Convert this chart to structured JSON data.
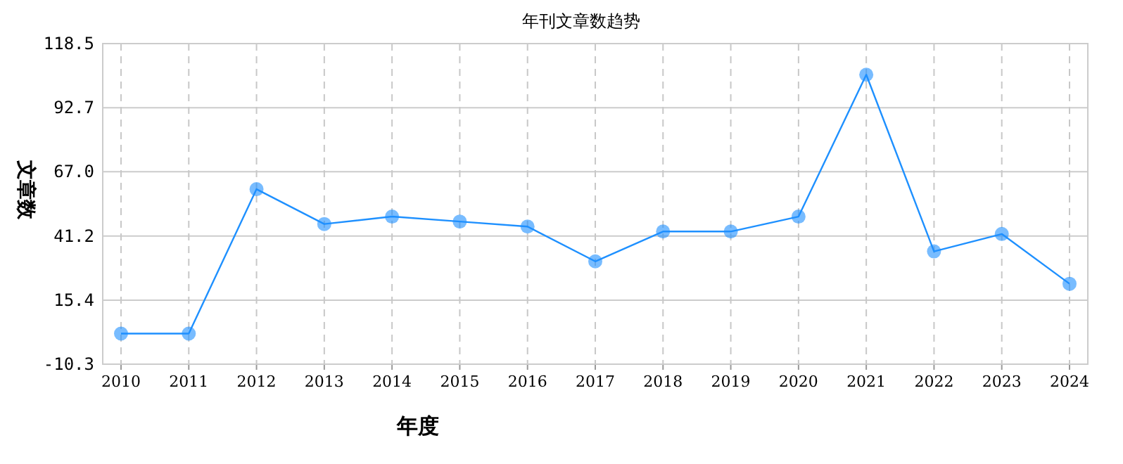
{
  "chart_data": {
    "type": "line",
    "title": "年刊文章数趋势",
    "xlabel": "年度",
    "ylabel": "文章数",
    "categories": [
      "2010",
      "2011",
      "2012",
      "2013",
      "2014",
      "2015",
      "2016",
      "2017",
      "2018",
      "2019",
      "2020",
      "2021",
      "2022",
      "2023",
      "2024"
    ],
    "series": [
      {
        "color": "#1e90ff",
        "values": [
          2,
          2,
          60,
          46,
          49,
          47,
          45,
          31,
          43,
          43,
          49,
          106,
          35,
          42,
          22
        ]
      }
    ],
    "ylim": [
      -10.3,
      118.5
    ],
    "yticks": [
      -10.3,
      15.4,
      41.2,
      {
        "value": 67,
        "label": "67.0"
      },
      92.7,
      118.5
    ],
    "grid": true,
    "marker": "circle",
    "line_style": "solid"
  }
}
